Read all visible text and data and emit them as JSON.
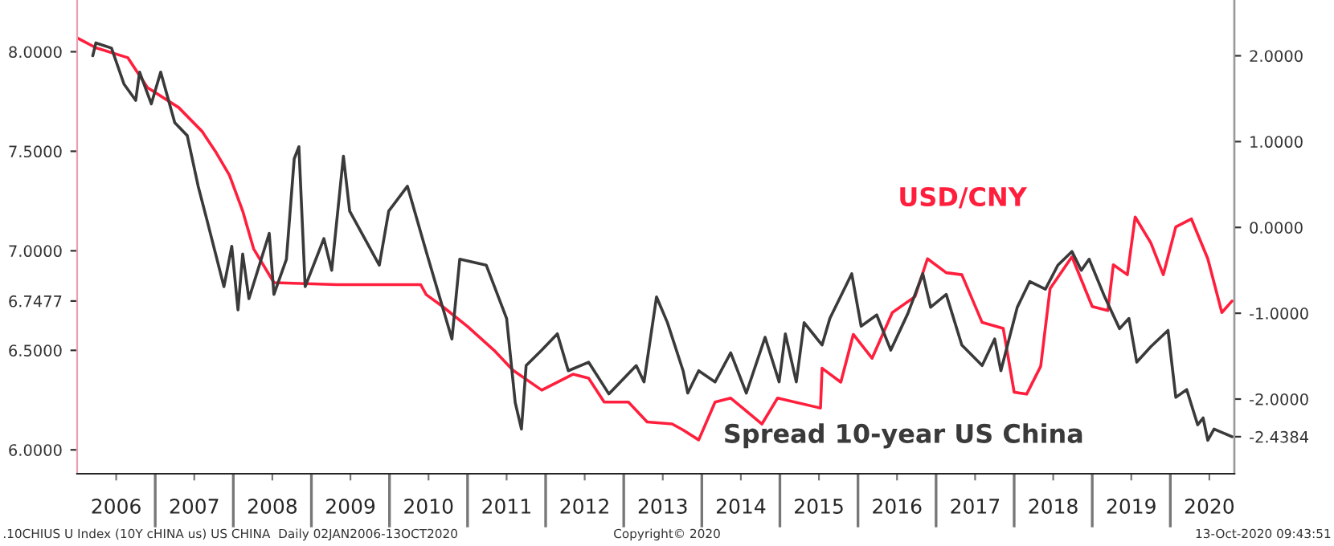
{
  "chart_data": {
    "type": "line",
    "annotations": [
      ".10CHIUS U Index (10Y cHINA us) US CHINA  Daily 02JAN2006-13OCT2020",
      "Copyright© 2020",
      "13-Oct-2020 09:43:51"
    ],
    "series": [
      {
        "name": "USD/CNY",
        "color": "#ff1f3d",
        "x": [
          2006.0,
          2006.24,
          2006.65,
          2006.9,
          2007.3,
          2007.6,
          2007.77,
          2007.95,
          2008.12,
          2008.26,
          2008.52,
          2009.33,
          2010.4,
          2010.47,
          2010.68,
          2011.0,
          2011.34,
          2011.58,
          2011.95,
          2012.35,
          2012.55,
          2012.75,
          2013.06,
          2013.3,
          2013.62,
          2013.76,
          2013.96,
          2014.17,
          2014.37,
          2014.77,
          2014.97,
          2015.52,
          2015.54,
          2015.78,
          2015.94,
          2016.18,
          2016.44,
          2016.73,
          2016.89,
          2017.13,
          2017.33,
          2017.59,
          2017.86,
          2018.0,
          2018.16,
          2018.34,
          2018.46,
          2018.74,
          2019.0,
          2019.2,
          2019.27,
          2019.45,
          2019.55,
          2019.75,
          2019.91,
          2020.07,
          2020.27,
          2020.48,
          2020.66,
          2020.79
        ],
        "values": [
          8.07,
          8.02,
          7.97,
          7.82,
          7.72,
          7.6,
          7.5,
          7.38,
          7.2,
          7.01,
          6.84,
          6.83,
          6.83,
          6.78,
          6.72,
          6.62,
          6.5,
          6.4,
          6.3,
          6.38,
          6.36,
          6.24,
          6.24,
          6.14,
          6.13,
          6.1,
          6.05,
          6.24,
          6.26,
          6.13,
          6.26,
          6.21,
          6.41,
          6.34,
          6.58,
          6.46,
          6.69,
          6.77,
          6.96,
          6.89,
          6.88,
          6.64,
          6.61,
          6.29,
          6.28,
          6.42,
          6.81,
          6.97,
          6.72,
          6.7,
          6.93,
          6.88,
          7.17,
          7.04,
          6.88,
          7.12,
          7.16,
          6.96,
          6.69,
          6.7477
        ]
      },
      {
        "name": "Spread 10-year US China",
        "color": "#3a3a3a",
        "axis": "y2",
        "x": [
          2006.2,
          2006.24,
          2006.44,
          2006.6,
          2006.75,
          2006.8,
          2006.95,
          2007.07,
          2007.25,
          2007.41,
          2007.55,
          2007.67,
          2007.88,
          2007.98,
          2008.06,
          2008.12,
          2008.2,
          2008.46,
          2008.52,
          2008.68,
          2008.78,
          2008.84,
          2008.92,
          2009.16,
          2009.26,
          2009.41,
          2009.49,
          2009.87,
          2009.99,
          2010.23,
          2010.48,
          2010.8,
          2010.9,
          2011.24,
          2011.5,
          2011.61,
          2011.69,
          2011.75,
          2011.95,
          2012.15,
          2012.29,
          2012.55,
          2012.81,
          2013.16,
          2013.26,
          2013.42,
          2013.56,
          2013.76,
          2013.82,
          2013.96,
          2014.17,
          2014.37,
          2014.57,
          2014.81,
          2014.99,
          2015.07,
          2015.21,
          2015.31,
          2015.54,
          2015.64,
          2015.92,
          2016.04,
          2016.24,
          2016.42,
          2016.64,
          2016.83,
          2016.93,
          2017.13,
          2017.33,
          2017.59,
          2017.75,
          2017.83,
          2018.04,
          2018.2,
          2018.4,
          2018.56,
          2018.74,
          2018.86,
          2018.96,
          2019.16,
          2019.35,
          2019.47,
          2019.57,
          2019.75,
          2019.97,
          2020.07,
          2020.21,
          2020.35,
          2020.42,
          2020.48,
          2020.56,
          2020.79
        ],
        "values": [
          2.0,
          2.15,
          2.09,
          1.67,
          1.48,
          1.81,
          1.44,
          1.81,
          1.22,
          1.07,
          0.48,
          0.06,
          -0.69,
          -0.22,
          -0.96,
          -0.31,
          -0.83,
          -0.07,
          -0.78,
          -0.37,
          0.8,
          0.94,
          -0.69,
          -0.13,
          -0.5,
          0.83,
          0.19,
          -0.44,
          0.19,
          0.48,
          -0.31,
          -1.3,
          -0.37,
          -0.44,
          -1.06,
          -2.04,
          -2.35,
          -1.61,
          -1.43,
          -1.24,
          -1.67,
          -1.57,
          -1.94,
          -1.61,
          -1.8,
          -0.81,
          -1.11,
          -1.67,
          -1.93,
          -1.67,
          -1.8,
          -1.46,
          -1.93,
          -1.28,
          -1.8,
          -1.24,
          -1.8,
          -1.11,
          -1.37,
          -1.06,
          -0.54,
          -1.15,
          -1.02,
          -1.43,
          -1.0,
          -0.54,
          -0.93,
          -0.78,
          -1.37,
          -1.61,
          -1.3,
          -1.67,
          -0.93,
          -0.63,
          -0.72,
          -0.44,
          -0.28,
          -0.5,
          -0.37,
          -0.81,
          -1.18,
          -1.06,
          -1.57,
          -1.39,
          -1.2,
          -1.98,
          -1.89,
          -2.3,
          -2.22,
          -2.48,
          -2.35,
          -2.4384
        ]
      }
    ],
    "xlim": [
      2006,
      2020.82
    ],
    "xticks": [
      {
        "value": 2006.5,
        "label": "2006"
      },
      {
        "value": 2007.5,
        "label": "2007"
      },
      {
        "value": 2008.5,
        "label": "2008"
      },
      {
        "value": 2009.5,
        "label": "2009"
      },
      {
        "value": 2010.5,
        "label": "2010"
      },
      {
        "value": 2011.5,
        "label": "2011"
      },
      {
        "value": 2012.5,
        "label": "2012"
      },
      {
        "value": 2013.5,
        "label": "2013"
      },
      {
        "value": 2014.5,
        "label": "2014"
      },
      {
        "value": 2015.5,
        "label": "2015"
      },
      {
        "value": 2016.5,
        "label": "2016"
      },
      {
        "value": 2017.5,
        "label": "2017"
      },
      {
        "value": 2018.5,
        "label": "2018"
      },
      {
        "value": 2019.5,
        "label": "2019"
      },
      {
        "value": 2020.5,
        "label": "2020"
      }
    ],
    "ylim": [
      5.88,
      8.26
    ],
    "yticks": [
      {
        "value": 6.0,
        "label": "6.0000"
      },
      {
        "value": 6.5,
        "label": "6.5000"
      },
      {
        "value": 6.7477,
        "label": "6.7477"
      },
      {
        "value": 7.0,
        "label": "7.0000"
      },
      {
        "value": 7.5,
        "label": "7.5000"
      },
      {
        "value": 8.0,
        "label": "8.0000"
      }
    ],
    "y2lim": [
      -2.87,
      2.65
    ],
    "y2ticks": [
      {
        "value": -2.4384,
        "label": "-2.4384"
      },
      {
        "value": -2.0,
        "label": "-2.0000"
      },
      {
        "value": -1.0,
        "label": "-1.0000"
      },
      {
        "value": 0.0,
        "label": "0.0000"
      },
      {
        "value": 1.0,
        "label": "1.0000"
      },
      {
        "value": 2.0,
        "label": "2.0000"
      }
    ],
    "grid": false,
    "legend": false
  }
}
